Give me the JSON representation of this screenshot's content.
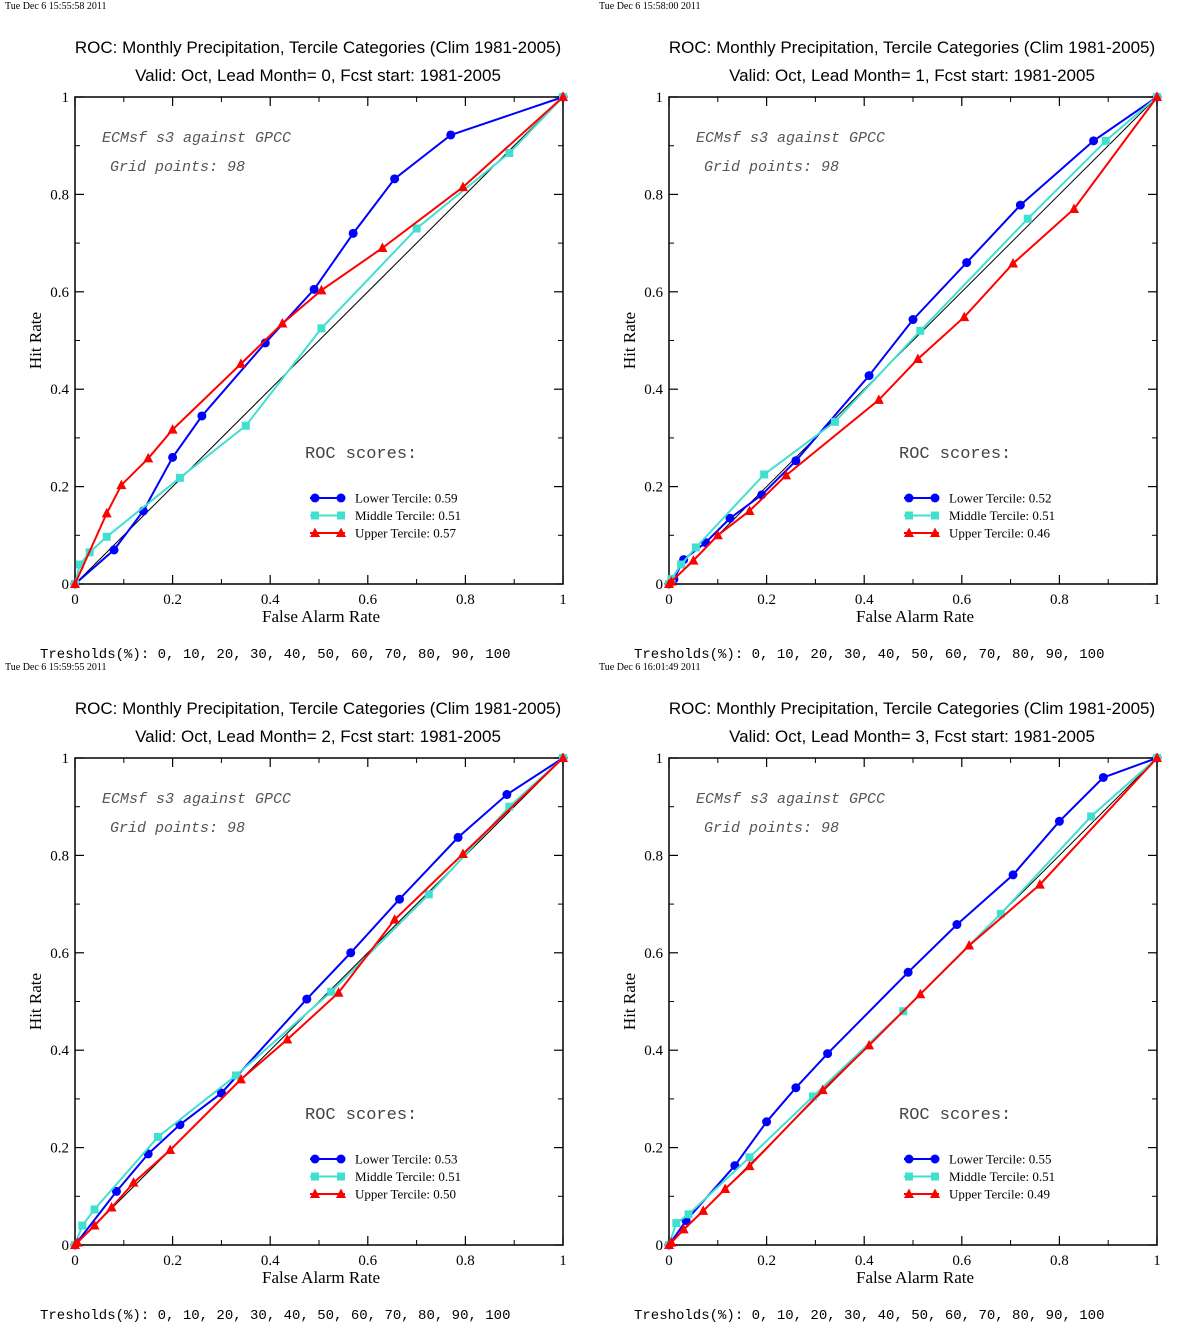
{
  "colors": {
    "lower": "#0000ff",
    "middle": "#40e0d0",
    "upper": "#ff0000",
    "diagonal": "#000000"
  },
  "chart_data": [
    {
      "type": "line",
      "timestamp": "Tue Dec  6 15:55:58 2011",
      "title": "ROC: Monthly Precipitation, Tercile Categories (Clim 1981-2005)",
      "subtitle": "Valid: Oct, Lead Month= 0, Fcst start: 1981-2005",
      "xlabel": "False Alarm Rate",
      "ylabel": "Hit Rate",
      "xlim": [
        0,
        1
      ],
      "ylim": [
        0,
        1
      ],
      "xticks": [
        "0",
        "0.2",
        "0.4",
        "0.6",
        "0.8",
        "1"
      ],
      "yticks": [
        "0",
        "0.2",
        "0.4",
        "0.6",
        "0.8",
        "1"
      ],
      "annotation_1": "ECMsf s3 against GPCC",
      "annotation_2": "Grid points:   98",
      "scores_heading": "ROC scores:",
      "thresholds": "Tresholds(%): 0, 10, 20, 30, 40, 50, 60, 70, 80, 90, 100",
      "series": [
        {
          "name": "Lower Tercile: 0.59",
          "key": "lower",
          "x": [
            0,
            0.08,
            0.14,
            0.2,
            0.26,
            0.39,
            0.49,
            0.57,
            0.655,
            0.77,
            1
          ],
          "y": [
            0,
            0.07,
            0.15,
            0.26,
            0.345,
            0.495,
            0.605,
            0.72,
            0.832,
            0.922,
            1
          ]
        },
        {
          "name": "Middle Tercile: 0.51",
          "key": "middle",
          "x": [
            0,
            0.01,
            0.03,
            0.065,
            0.215,
            0.35,
            0.505,
            0.7,
            0.89,
            1
          ],
          "y": [
            0,
            0.04,
            0.065,
            0.097,
            0.218,
            0.325,
            0.525,
            0.73,
            0.885,
            1
          ]
        },
        {
          "name": "Upper Tercile: 0.57",
          "key": "upper",
          "x": [
            0,
            0.065,
            0.095,
            0.15,
            0.2,
            0.34,
            0.425,
            0.505,
            0.63,
            0.795,
            1
          ],
          "y": [
            0,
            0.145,
            0.203,
            0.258,
            0.317,
            0.452,
            0.535,
            0.603,
            0.69,
            0.815,
            1
          ]
        }
      ]
    },
    {
      "type": "line",
      "timestamp": "Tue Dec  6 15:58:00 2011",
      "title": "ROC: Monthly Precipitation, Tercile Categories (Clim 1981-2005)",
      "subtitle": "Valid: Oct, Lead Month= 1, Fcst start: 1981-2005",
      "xlabel": "False Alarm Rate",
      "ylabel": "Hit Rate",
      "xlim": [
        0,
        1
      ],
      "ylim": [
        0,
        1
      ],
      "xticks": [
        "0",
        "0.2",
        "0.4",
        "0.6",
        "0.8",
        "1"
      ],
      "yticks": [
        "0",
        "0.2",
        "0.4",
        "0.6",
        "0.8",
        "1"
      ],
      "annotation_1": "ECMsf s3 against GPCC",
      "annotation_2": "Grid points:   98",
      "scores_heading": "ROC scores:",
      "thresholds": "Tresholds(%): 0, 10, 20, 30, 40, 50, 60, 70, 80, 90, 100",
      "series": [
        {
          "name": "Lower Tercile: 0.52",
          "key": "lower",
          "x": [
            0,
            0.01,
            0.03,
            0.075,
            0.125,
            0.19,
            0.26,
            0.41,
            0.5,
            0.61,
            0.72,
            0.87,
            1
          ],
          "y": [
            0,
            0.01,
            0.05,
            0.085,
            0.135,
            0.183,
            0.253,
            0.428,
            0.543,
            0.66,
            0.778,
            0.91,
            1
          ]
        },
        {
          "name": "Middle Tercile: 0.51",
          "key": "middle",
          "x": [
            0,
            0.005,
            0.025,
            0.055,
            0.195,
            0.34,
            0.515,
            0.735,
            0.895,
            1
          ],
          "y": [
            0,
            0.01,
            0.04,
            0.075,
            0.225,
            0.333,
            0.52,
            0.75,
            0.91,
            1
          ]
        },
        {
          "name": "Upper Tercile: 0.46",
          "key": "upper",
          "x": [
            0,
            0.005,
            0.05,
            0.1,
            0.165,
            0.24,
            0.43,
            0.51,
            0.605,
            0.705,
            0.83,
            1
          ],
          "y": [
            0,
            0.005,
            0.048,
            0.1,
            0.15,
            0.223,
            0.378,
            0.462,
            0.548,
            0.658,
            0.77,
            1
          ]
        }
      ]
    },
    {
      "type": "line",
      "timestamp": "Tue Dec  6 15:59:55 2011",
      "title": "ROC: Monthly Precipitation, Tercile Categories (Clim 1981-2005)",
      "subtitle": "Valid: Oct, Lead Month= 2, Fcst start: 1981-2005",
      "xlabel": "False Alarm Rate",
      "ylabel": "Hit Rate",
      "xlim": [
        0,
        1
      ],
      "ylim": [
        0,
        1
      ],
      "xticks": [
        "0",
        "0.2",
        "0.4",
        "0.6",
        "0.8",
        "1"
      ],
      "yticks": [
        "0",
        "0.2",
        "0.4",
        "0.6",
        "0.8",
        "1"
      ],
      "annotation_1": "ECMsf s3 against GPCC",
      "annotation_2": "Grid points:   98",
      "scores_heading": "ROC scores:",
      "thresholds": "Tresholds(%): 0, 10, 20, 30, 40, 50, 60, 70, 80, 90, 100",
      "series": [
        {
          "name": "Lower Tercile: 0.53",
          "key": "lower",
          "x": [
            0,
            0.085,
            0.15,
            0.215,
            0.3,
            0.475,
            0.565,
            0.665,
            0.785,
            0.885,
            1
          ],
          "y": [
            0,
            0.11,
            0.187,
            0.247,
            0.312,
            0.505,
            0.6,
            0.71,
            0.837,
            0.925,
            1
          ]
        },
        {
          "name": "Middle Tercile: 0.51",
          "key": "middle",
          "x": [
            0,
            0.015,
            0.04,
            0.17,
            0.33,
            0.525,
            0.725,
            0.89,
            1
          ],
          "y": [
            0,
            0.04,
            0.073,
            0.222,
            0.348,
            0.52,
            0.72,
            0.9,
            1
          ]
        },
        {
          "name": "Upper Tercile: 0.50",
          "key": "upper",
          "x": [
            0,
            0.005,
            0.04,
            0.075,
            0.12,
            0.195,
            0.34,
            0.435,
            0.54,
            0.655,
            0.795,
            1
          ],
          "y": [
            0,
            0.005,
            0.04,
            0.077,
            0.128,
            0.195,
            0.34,
            0.422,
            0.518,
            0.668,
            0.803,
            1
          ]
        }
      ]
    },
    {
      "type": "line",
      "timestamp": "Tue Dec  6 16:01:49 2011",
      "title": "ROC: Monthly Precipitation, Tercile Categories (Clim 1981-2005)",
      "subtitle": "Valid: Oct, Lead Month= 3, Fcst start: 1981-2005",
      "xlabel": "False Alarm Rate",
      "ylabel": "Hit Rate",
      "xlim": [
        0,
        1
      ],
      "ylim": [
        0,
        1
      ],
      "xticks": [
        "0",
        "0.2",
        "0.4",
        "0.6",
        "0.8",
        "1"
      ],
      "yticks": [
        "0",
        "0.2",
        "0.4",
        "0.6",
        "0.8",
        "1"
      ],
      "annotation_1": "ECMsf s3 against GPCC",
      "annotation_2": "Grid points:   98",
      "scores_heading": "ROC scores:",
      "thresholds": "Tresholds(%): 0, 10, 20, 30, 40, 50, 60, 70, 80, 90, 100",
      "series": [
        {
          "name": "Lower Tercile: 0.55",
          "key": "lower",
          "x": [
            0,
            0.035,
            0.135,
            0.2,
            0.26,
            0.325,
            0.49,
            0.59,
            0.705,
            0.8,
            0.89,
            1
          ],
          "y": [
            0,
            0.05,
            0.163,
            0.253,
            0.323,
            0.393,
            0.56,
            0.658,
            0.76,
            0.87,
            0.96,
            1
          ]
        },
        {
          "name": "Middle Tercile: 0.51",
          "key": "middle",
          "x": [
            0,
            0.015,
            0.04,
            0.165,
            0.295,
            0.48,
            0.68,
            0.865,
            1
          ],
          "y": [
            0,
            0.045,
            0.063,
            0.18,
            0.305,
            0.48,
            0.68,
            0.88,
            1
          ]
        },
        {
          "name": "Upper Tercile: 0.49",
          "key": "upper",
          "x": [
            0,
            0.005,
            0.03,
            0.07,
            0.115,
            0.165,
            0.315,
            0.41,
            0.515,
            0.615,
            0.76,
            1
          ],
          "y": [
            0,
            0.005,
            0.032,
            0.07,
            0.115,
            0.162,
            0.318,
            0.41,
            0.515,
            0.615,
            0.74,
            1
          ]
        }
      ]
    }
  ]
}
